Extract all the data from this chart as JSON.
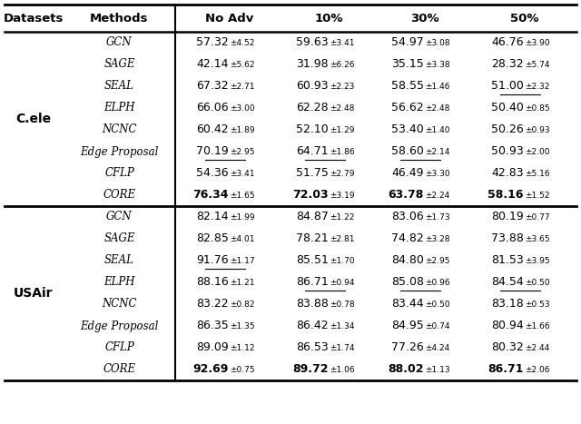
{
  "header": [
    "Datasets",
    "Methods",
    "No Adv",
    "10%",
    "30%",
    "50%"
  ],
  "datasets": [
    "C.ele",
    "USAir"
  ],
  "methods": [
    "GCN",
    "SAGE",
    "SEAL",
    "ELPH",
    "NCNC",
    "Edge Proposal",
    "CFLP",
    "CORE"
  ],
  "cele_data": [
    [
      "57.32",
      "4.52",
      "59.63",
      "3.41",
      "54.97",
      "3.08",
      "46.76",
      "3.90"
    ],
    [
      "42.14",
      "5.62",
      "31.98",
      "6.26",
      "35.15",
      "3.38",
      "28.32",
      "5.74"
    ],
    [
      "67.32",
      "2.71",
      "60.93",
      "2.23",
      "58.55",
      "1.46",
      "51.00",
      "2.32"
    ],
    [
      "66.06",
      "3.00",
      "62.28",
      "2.48",
      "56.62",
      "2.48",
      "50.40",
      "0.85"
    ],
    [
      "60.42",
      "1.89",
      "52.10",
      "1.29",
      "53.40",
      "1.40",
      "50.26",
      "0.93"
    ],
    [
      "70.19",
      "2.95",
      "64.71",
      "1.86",
      "58.60",
      "2.14",
      "50.93",
      "2.00"
    ],
    [
      "54.36",
      "3.41",
      "51.75",
      "2.79",
      "46.49",
      "3.30",
      "42.83",
      "5.16"
    ],
    [
      "76.34",
      "1.65",
      "72.03",
      "3.19",
      "63.78",
      "2.24",
      "58.16",
      "1.52"
    ]
  ],
  "usair_data": [
    [
      "82.14",
      "1.99",
      "84.87",
      "1.22",
      "83.06",
      "1.73",
      "80.19",
      "0.77"
    ],
    [
      "82.85",
      "4.01",
      "78.21",
      "2.81",
      "74.82",
      "3.28",
      "73.88",
      "3.65"
    ],
    [
      "91.76",
      "1.17",
      "85.51",
      "1.70",
      "84.80",
      "2.95",
      "81.53",
      "3.95"
    ],
    [
      "88.16",
      "1.21",
      "86.71",
      "0.94",
      "85.08",
      "0.96",
      "84.54",
      "0.50"
    ],
    [
      "83.22",
      "0.82",
      "83.88",
      "0.78",
      "83.44",
      "0.50",
      "83.18",
      "0.53"
    ],
    [
      "86.35",
      "1.35",
      "86.42",
      "1.34",
      "84.95",
      "0.74",
      "80.94",
      "1.66"
    ],
    [
      "89.09",
      "1.12",
      "86.53",
      "1.74",
      "77.26",
      "4.24",
      "80.32",
      "2.44"
    ],
    [
      "92.69",
      "0.75",
      "89.72",
      "1.06",
      "88.02",
      "1.13",
      "86.71",
      "2.06"
    ]
  ],
  "cele_underline": [
    [
      false,
      false,
      false,
      false
    ],
    [
      false,
      false,
      false,
      false
    ],
    [
      false,
      false,
      false,
      true
    ],
    [
      false,
      false,
      false,
      false
    ],
    [
      false,
      false,
      false,
      false
    ],
    [
      true,
      true,
      true,
      false
    ],
    [
      false,
      false,
      false,
      false
    ],
    [
      false,
      false,
      false,
      false
    ]
  ],
  "usair_underline": [
    [
      false,
      false,
      false,
      false
    ],
    [
      false,
      false,
      false,
      false
    ],
    [
      true,
      false,
      false,
      false
    ],
    [
      false,
      true,
      true,
      true
    ],
    [
      false,
      false,
      false,
      false
    ],
    [
      false,
      false,
      false,
      false
    ],
    [
      false,
      false,
      false,
      false
    ],
    [
      false,
      false,
      false,
      false
    ]
  ],
  "cele_bold": [
    [
      false,
      false,
      false,
      false
    ],
    [
      false,
      false,
      false,
      false
    ],
    [
      false,
      false,
      false,
      false
    ],
    [
      false,
      false,
      false,
      false
    ],
    [
      false,
      false,
      false,
      false
    ],
    [
      false,
      false,
      false,
      false
    ],
    [
      false,
      false,
      false,
      false
    ],
    [
      true,
      true,
      true,
      true
    ]
  ],
  "usair_bold": [
    [
      false,
      false,
      false,
      false
    ],
    [
      false,
      false,
      false,
      false
    ],
    [
      false,
      false,
      false,
      false
    ],
    [
      false,
      false,
      false,
      false
    ],
    [
      false,
      false,
      false,
      false
    ],
    [
      false,
      false,
      false,
      false
    ],
    [
      false,
      false,
      false,
      false
    ],
    [
      true,
      true,
      true,
      true
    ]
  ]
}
